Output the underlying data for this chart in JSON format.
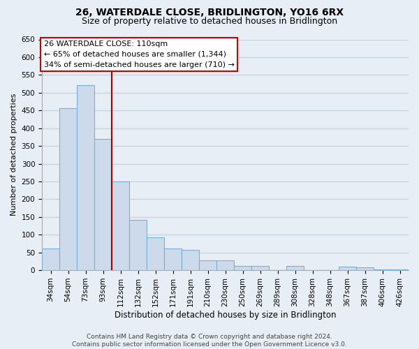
{
  "title": "26, WATERDALE CLOSE, BRIDLINGTON, YO16 6RX",
  "subtitle": "Size of property relative to detached houses in Bridlington",
  "xlabel": "Distribution of detached houses by size in Bridlington",
  "ylabel": "Number of detached properties",
  "categories": [
    "34sqm",
    "54sqm",
    "73sqm",
    "93sqm",
    "112sqm",
    "132sqm",
    "152sqm",
    "171sqm",
    "191sqm",
    "210sqm",
    "230sqm",
    "250sqm",
    "269sqm",
    "289sqm",
    "308sqm",
    "328sqm",
    "348sqm",
    "367sqm",
    "387sqm",
    "406sqm",
    "426sqm"
  ],
  "values": [
    62,
    456,
    522,
    370,
    250,
    142,
    93,
    62,
    57,
    28,
    28,
    12,
    12,
    0,
    12,
    0,
    0,
    10,
    8,
    3,
    3
  ],
  "bar_color": "#ccdaeb",
  "bar_edge_color": "#7bafd4",
  "ylim_max": 650,
  "yticks": [
    0,
    50,
    100,
    150,
    200,
    250,
    300,
    350,
    400,
    450,
    500,
    550,
    600,
    650
  ],
  "vline_after_index": 3,
  "vline_color": "#aa0000",
  "annotation_line1": "26 WATERDALE CLOSE: 110sqm",
  "annotation_line2": "← 65% of detached houses are smaller (1,344)",
  "annotation_line3": "34% of semi-detached houses are larger (710) →",
  "footer_line1": "Contains HM Land Registry data © Crown copyright and database right 2024.",
  "footer_line2": "Contains public sector information licensed under the Open Government Licence v3.0.",
  "bg_color": "#e8eef5",
  "grid_color": "#c8d4e0",
  "title_fontsize": 10,
  "subtitle_fontsize": 9,
  "xlabel_fontsize": 8.5,
  "ylabel_fontsize": 8,
  "tick_fontsize": 7.5,
  "annotation_fontsize": 8,
  "footer_fontsize": 6.5
}
